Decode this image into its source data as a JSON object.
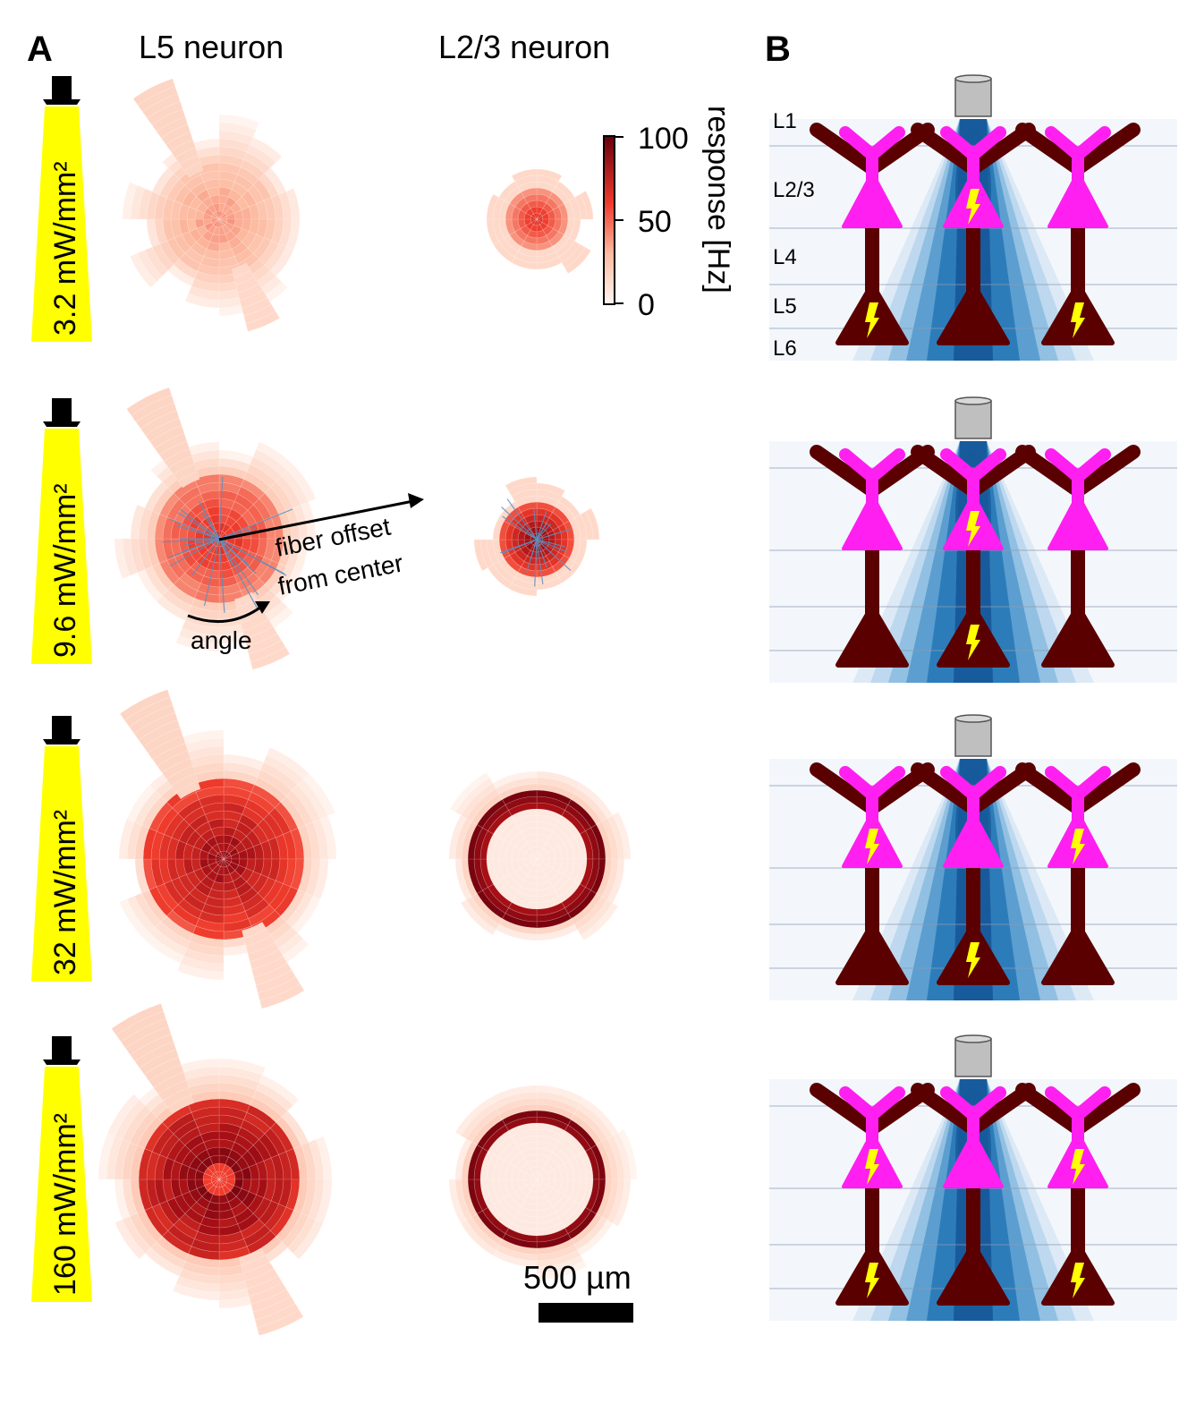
{
  "panel_labels": {
    "a": "A",
    "b": "B"
  },
  "columns": {
    "l5": "L5 neuron",
    "l23": "L2/3 neuron"
  },
  "rows": [
    {
      "intensity": "3.2 mW/mm²",
      "l5_level": 0.35,
      "l23_level": 0.55,
      "l23_ring": false,
      "l5_lightning": true,
      "l23_lightning": true
    },
    {
      "intensity": "9.6 mW/mm²",
      "l5_level": 0.6,
      "l23_level": 0.85,
      "l23_ring": false,
      "l5_lightning": false,
      "l23_lightning": true
    },
    {
      "intensity": "32 mW/mm²",
      "l5_level": 0.85,
      "l23_level": 0.95,
      "l23_ring": true,
      "l5_lightning": false,
      "l23_lightning": true
    },
    {
      "intensity": "160 mW/mm²",
      "l5_level": 1.0,
      "l23_level": 1.0,
      "l23_ring": true,
      "l5_lightning": true,
      "l23_lightning": true
    }
  ],
  "l5_lightning_center": [
    false,
    true,
    true,
    false
  ],
  "l5_lightning_sides": [
    true,
    false,
    false,
    true
  ],
  "l23_lightning_center": [
    true,
    true,
    false,
    false
  ],
  "l23_lightning_sides": [
    false,
    false,
    true,
    true
  ],
  "colorbar": {
    "label": "response [Hz]",
    "ticks": [
      "100",
      "50",
      "0"
    ],
    "range": [
      0,
      100
    ]
  },
  "annotations": {
    "fiber": "fiber offset",
    "fiber2": "from center",
    "angle": "angle"
  },
  "scale_bar": {
    "label": "500 µm"
  },
  "layers": [
    "L1",
    "L2/3",
    "L4",
    "L5",
    "L6"
  ],
  "colors": {
    "magenta": "#ff1ff0",
    "dark_red": "#5a0000",
    "yellow": "#ffff00",
    "blue": "#2a7ab8",
    "fiber": "#bfbfbf"
  }
}
